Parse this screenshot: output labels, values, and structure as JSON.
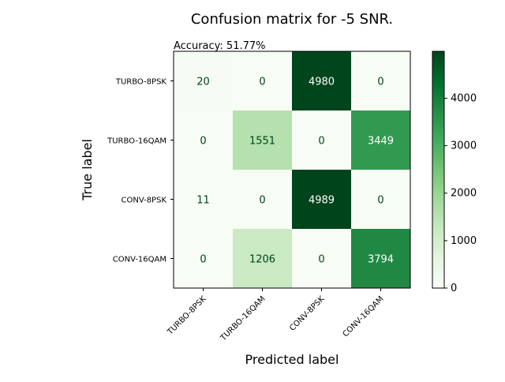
{
  "chart_data": {
    "type": "heatmap",
    "title": "Confusion matrix for -5 SNR.",
    "subtitle": "Accuracy: 51.77%",
    "xlabel": "Predicted label",
    "ylabel": "True label",
    "x_categories": [
      "TURBO-8PSK",
      "TURBO-16QAM",
      "CONV-8PSK",
      "CONV-16QAM"
    ],
    "y_categories": [
      "TURBO-8PSK",
      "TURBO-16QAM",
      "CONV-8PSK",
      "CONV-16QAM"
    ],
    "matrix": [
      [
        20,
        0,
        4980,
        0
      ],
      [
        0,
        1551,
        0,
        3449
      ],
      [
        11,
        0,
        4989,
        0
      ],
      [
        0,
        1206,
        0,
        3794
      ]
    ],
    "colormap": "Greens",
    "color_low": "#f7fcf5",
    "color_high": "#00441b",
    "colorbar": {
      "range": [
        0,
        4989
      ],
      "ticks": [
        0,
        1000,
        2000,
        3000,
        4000
      ],
      "tick_labels": [
        "0",
        "1000",
        "2000",
        "3000",
        "4000"
      ]
    }
  }
}
